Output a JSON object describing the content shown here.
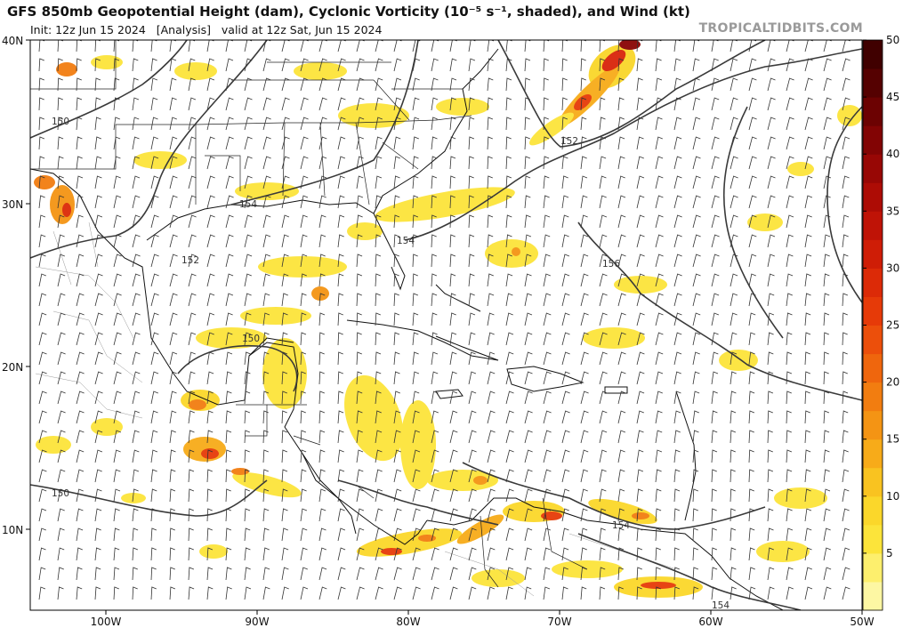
{
  "header": {
    "title": "GFS 850mb Geopotential Height (dam), Cyclonic Vorticity (10⁻⁵ s⁻¹, shaded), and Wind (kt)",
    "subtitle": "Init: 12z Jun 15 2024   [Analysis]   valid at 12z Sat, Jun 15 2024",
    "watermark": "TROPICALTIDBITS.COM"
  },
  "map": {
    "lat_labels": [
      "40N",
      "30N",
      "20N",
      "10N"
    ],
    "lon_labels": [
      "100W",
      "90W",
      "80W",
      "70W",
      "60W",
      "50W"
    ],
    "contour_labels": [
      "150",
      "152",
      "154",
      "156",
      "150",
      "150",
      "152",
      "154",
      "154",
      "154"
    ],
    "land_color": "#ffffff",
    "border_color": "#000000"
  },
  "colorbar": {
    "ticks": [
      "5",
      "10",
      "15",
      "20",
      "25",
      "30",
      "35",
      "40",
      "45",
      "50"
    ],
    "colors": [
      "#fdf7a3",
      "#fdef6d",
      "#fce43a",
      "#fbd72a",
      "#f9c320",
      "#f7ab19",
      "#f49414",
      "#f27d10",
      "#ef660d",
      "#ec4f0b",
      "#e63a08",
      "#dc2a07",
      "#cf1d06",
      "#bf1306",
      "#ad0c05",
      "#980705",
      "#820404",
      "#6c0202",
      "#550101",
      "#400000"
    ]
  }
}
